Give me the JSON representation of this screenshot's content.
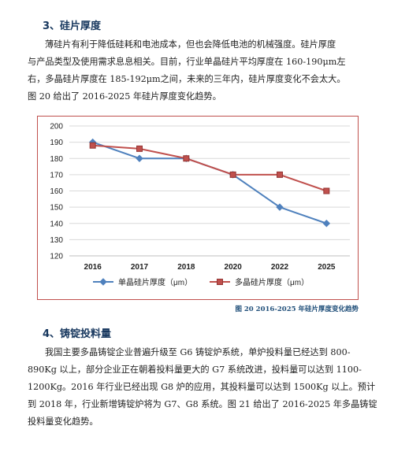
{
  "section3": {
    "heading": "3、硅片厚度",
    "lines": [
      "薄硅片有利于降低硅耗和电池成本，但也会降低电池的机械强度。硅片厚度",
      "与产品类型及使用需求息息相关。目前，行业单晶硅片平均厚度在 160-190μm左",
      "右，多晶硅片厚度在 185-192μm之间，未来的三年内，硅片厚度变化不会太大。",
      "图 20 给出了 2016-2025 年硅片厚度变化趋势。"
    ]
  },
  "figure20": {
    "caption": "图 20 2016-2025 年硅片厚度变化趋势"
  },
  "chart_data": {
    "type": "line",
    "categories": [
      "2016",
      "2017",
      "2018",
      "2020",
      "2022",
      "2025"
    ],
    "series": [
      {
        "name": "单晶硅片厚度（μm）",
        "values": [
          190,
          180,
          180,
          170,
          150,
          140
        ],
        "color": "#4f81bd",
        "marker": "diamond"
      },
      {
        "name": "多晶硅片厚度（μm）",
        "values": [
          188,
          186,
          180,
          170,
          170,
          160
        ],
        "color": "#c0504d",
        "marker": "square"
      }
    ],
    "yticks": [
      "200",
      "190",
      "180",
      "170",
      "160",
      "150",
      "140",
      "130",
      "120"
    ],
    "ylim": [
      120,
      200
    ],
    "grid": "horizontal",
    "legend": "bottom"
  },
  "section4": {
    "heading": "4、铸锭投料量",
    "lines": [
      "我国主要多晶铸锭企业普遍升级至 G6 铸锭炉系统，单炉投料量已经达到 800-",
      "890Kg 以上，部分企业正在朝着投料量更大的 G7 系统改进，投料量可以达到 1100-",
      "1200Kg。2016 年行业已经出现 G8 炉的应用，其投料量可以达到 1500Kg 以上。预计",
      "到 2018 年，行业新增铸锭炉将为 G7、G8 系统。图 21 给出了 2016-2025 年多晶铸锭",
      "投料量变化趋势。"
    ]
  }
}
